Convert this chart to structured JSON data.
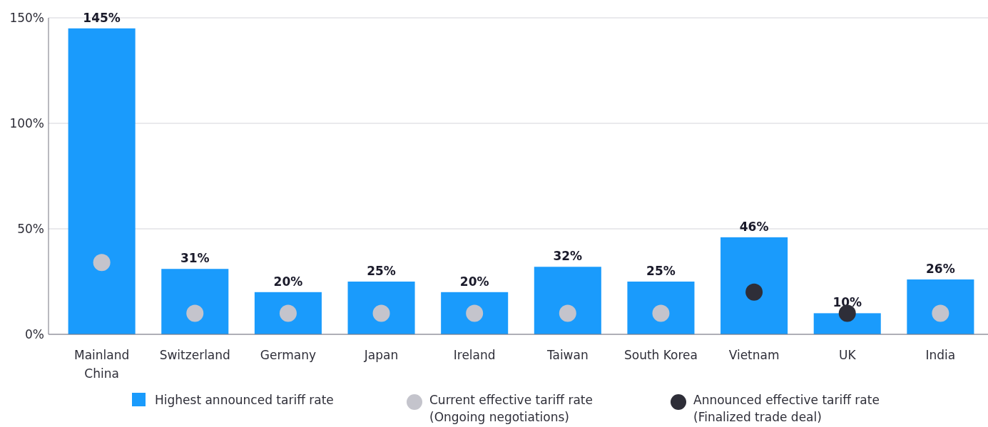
{
  "chart_data": {
    "type": "bar",
    "categories": [
      "Mainland\nChina",
      "Switzerland",
      "Germany",
      "Japan",
      "Ireland",
      "Taiwan",
      "South Korea",
      "Vietnam",
      "UK",
      "India"
    ],
    "series": [
      {
        "name": "Highest announced tariff rate",
        "color": "#1a9bfc",
        "values": [
          145,
          31,
          20,
          25,
          20,
          32,
          25,
          46,
          10,
          26
        ],
        "value_labels": [
          "145%",
          "31%",
          "20%",
          "25%",
          "20%",
          "32%",
          "25%",
          "46%",
          "10%",
          "26%"
        ]
      },
      {
        "name": "Current effective tariff rate\n(Ongoing negotiations)",
        "type": "scatter",
        "marker": "circle",
        "color": "#c4c4cc",
        "values": [
          34,
          10,
          10,
          10,
          10,
          10,
          10,
          null,
          null,
          10
        ]
      },
      {
        "name": "Announced effective tariff rate\n(Finalized trade deal)",
        "type": "scatter",
        "marker": "circle",
        "color": "#2e2e38",
        "values": [
          null,
          null,
          null,
          null,
          null,
          null,
          null,
          20,
          10,
          null
        ]
      }
    ],
    "ylim": [
      0,
      150
    ],
    "yticks": [
      {
        "value": 0,
        "label": "0%"
      },
      {
        "value": 50,
        "label": "50%"
      },
      {
        "value": 100,
        "label": "100%"
      },
      {
        "value": 150,
        "label": "150%"
      }
    ],
    "grid": "y",
    "legend": "bottom"
  }
}
